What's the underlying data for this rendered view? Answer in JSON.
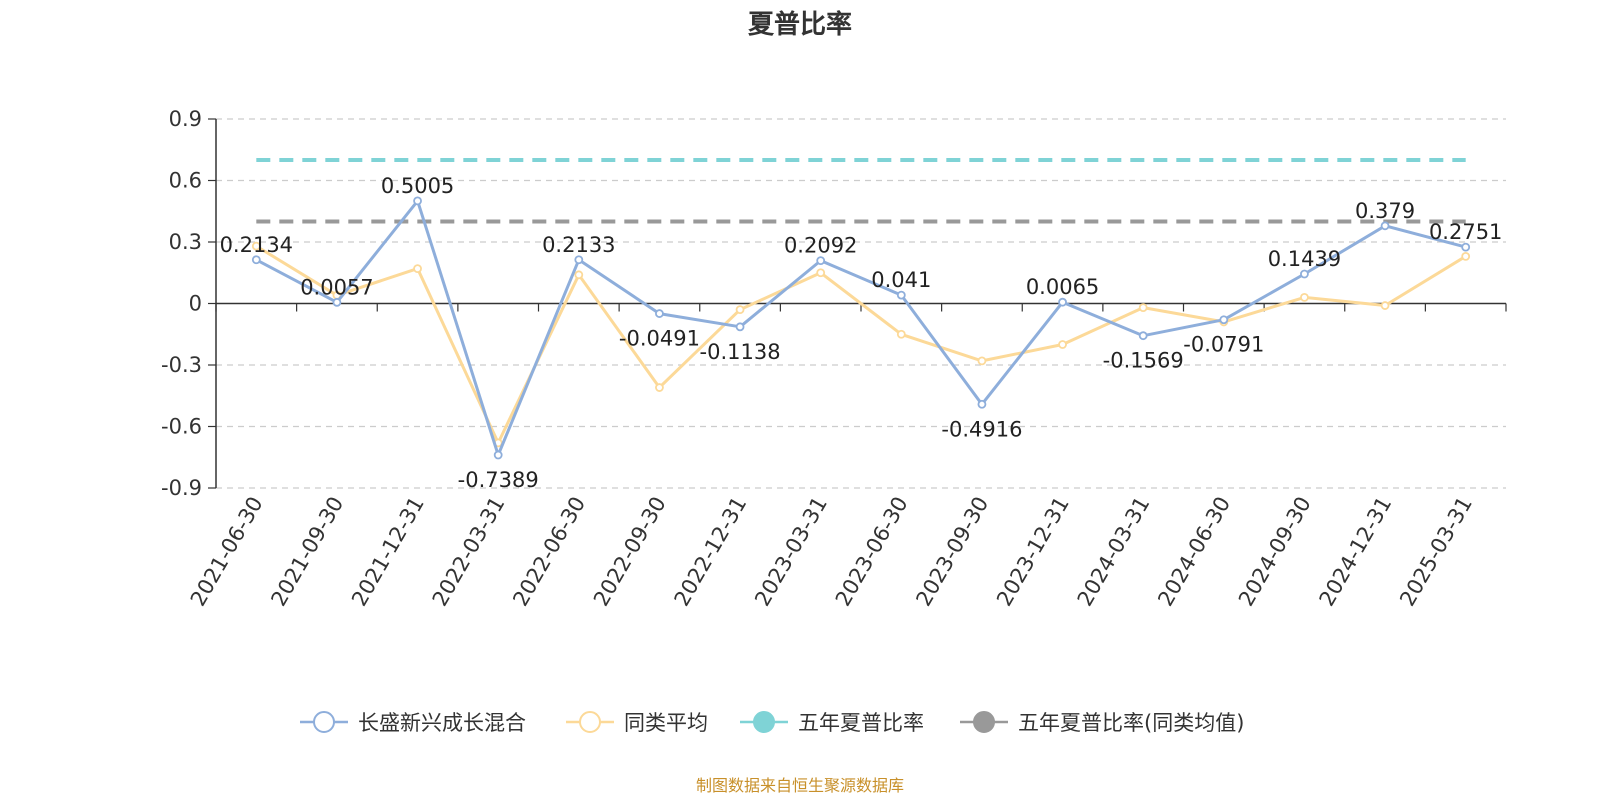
{
  "chart_data": {
    "type": "line",
    "title": "夏普比率",
    "categories": [
      "2021-06-30",
      "2021-09-30",
      "2021-12-31",
      "2022-03-31",
      "2022-06-30",
      "2022-09-30",
      "2022-12-31",
      "2023-03-31",
      "2023-06-30",
      "2023-09-30",
      "2023-12-31",
      "2024-03-31",
      "2024-06-30",
      "2024-09-30",
      "2024-12-31",
      "2025-03-31"
    ],
    "ylim": [
      -0.9,
      0.9
    ],
    "yticks": [
      "0.9",
      "0.6",
      "0.3",
      "0",
      "-0.3",
      "-0.6",
      "-0.9"
    ],
    "ytick_values": [
      0.9,
      0.6,
      0.3,
      0,
      -0.3,
      -0.6,
      -0.9
    ],
    "grid": true,
    "legend_position": "bottom",
    "series": [
      {
        "name": "长盛新兴成长混合",
        "color": "#8eaedb",
        "values": [
          0.2134,
          0.0057,
          0.5005,
          -0.7389,
          0.2133,
          -0.0491,
          -0.1138,
          0.2092,
          0.041,
          -0.4916,
          0.0065,
          -0.1569,
          -0.0791,
          0.1439,
          0.379,
          0.2751
        ],
        "labels": [
          "0.2134",
          "0.0057",
          "0.5005",
          "-0.7389",
          "0.2133",
          "-0.0491",
          "-0.1138",
          "0.2092",
          "0.041",
          "-0.4916",
          "0.0065",
          "-0.1569",
          "-0.0791",
          "0.1439",
          "0.379",
          "0.2751"
        ]
      },
      {
        "name": "同类平均",
        "color": "#fcd998",
        "values": [
          0.28,
          0.04,
          0.17,
          -0.68,
          0.14,
          -0.41,
          -0.03,
          0.15,
          -0.15,
          -0.28,
          -0.2,
          -0.02,
          -0.09,
          0.03,
          -0.01,
          0.23
        ]
      },
      {
        "name": "五年夏普比率",
        "color": "#7fd3d6",
        "style": "dashed",
        "value": 0.7
      },
      {
        "name": "五年夏普比率(同类均值)",
        "color": "#999999",
        "style": "dashed",
        "value": 0.4
      }
    ]
  },
  "source_text": "制图数据来自恒生聚源数据库"
}
